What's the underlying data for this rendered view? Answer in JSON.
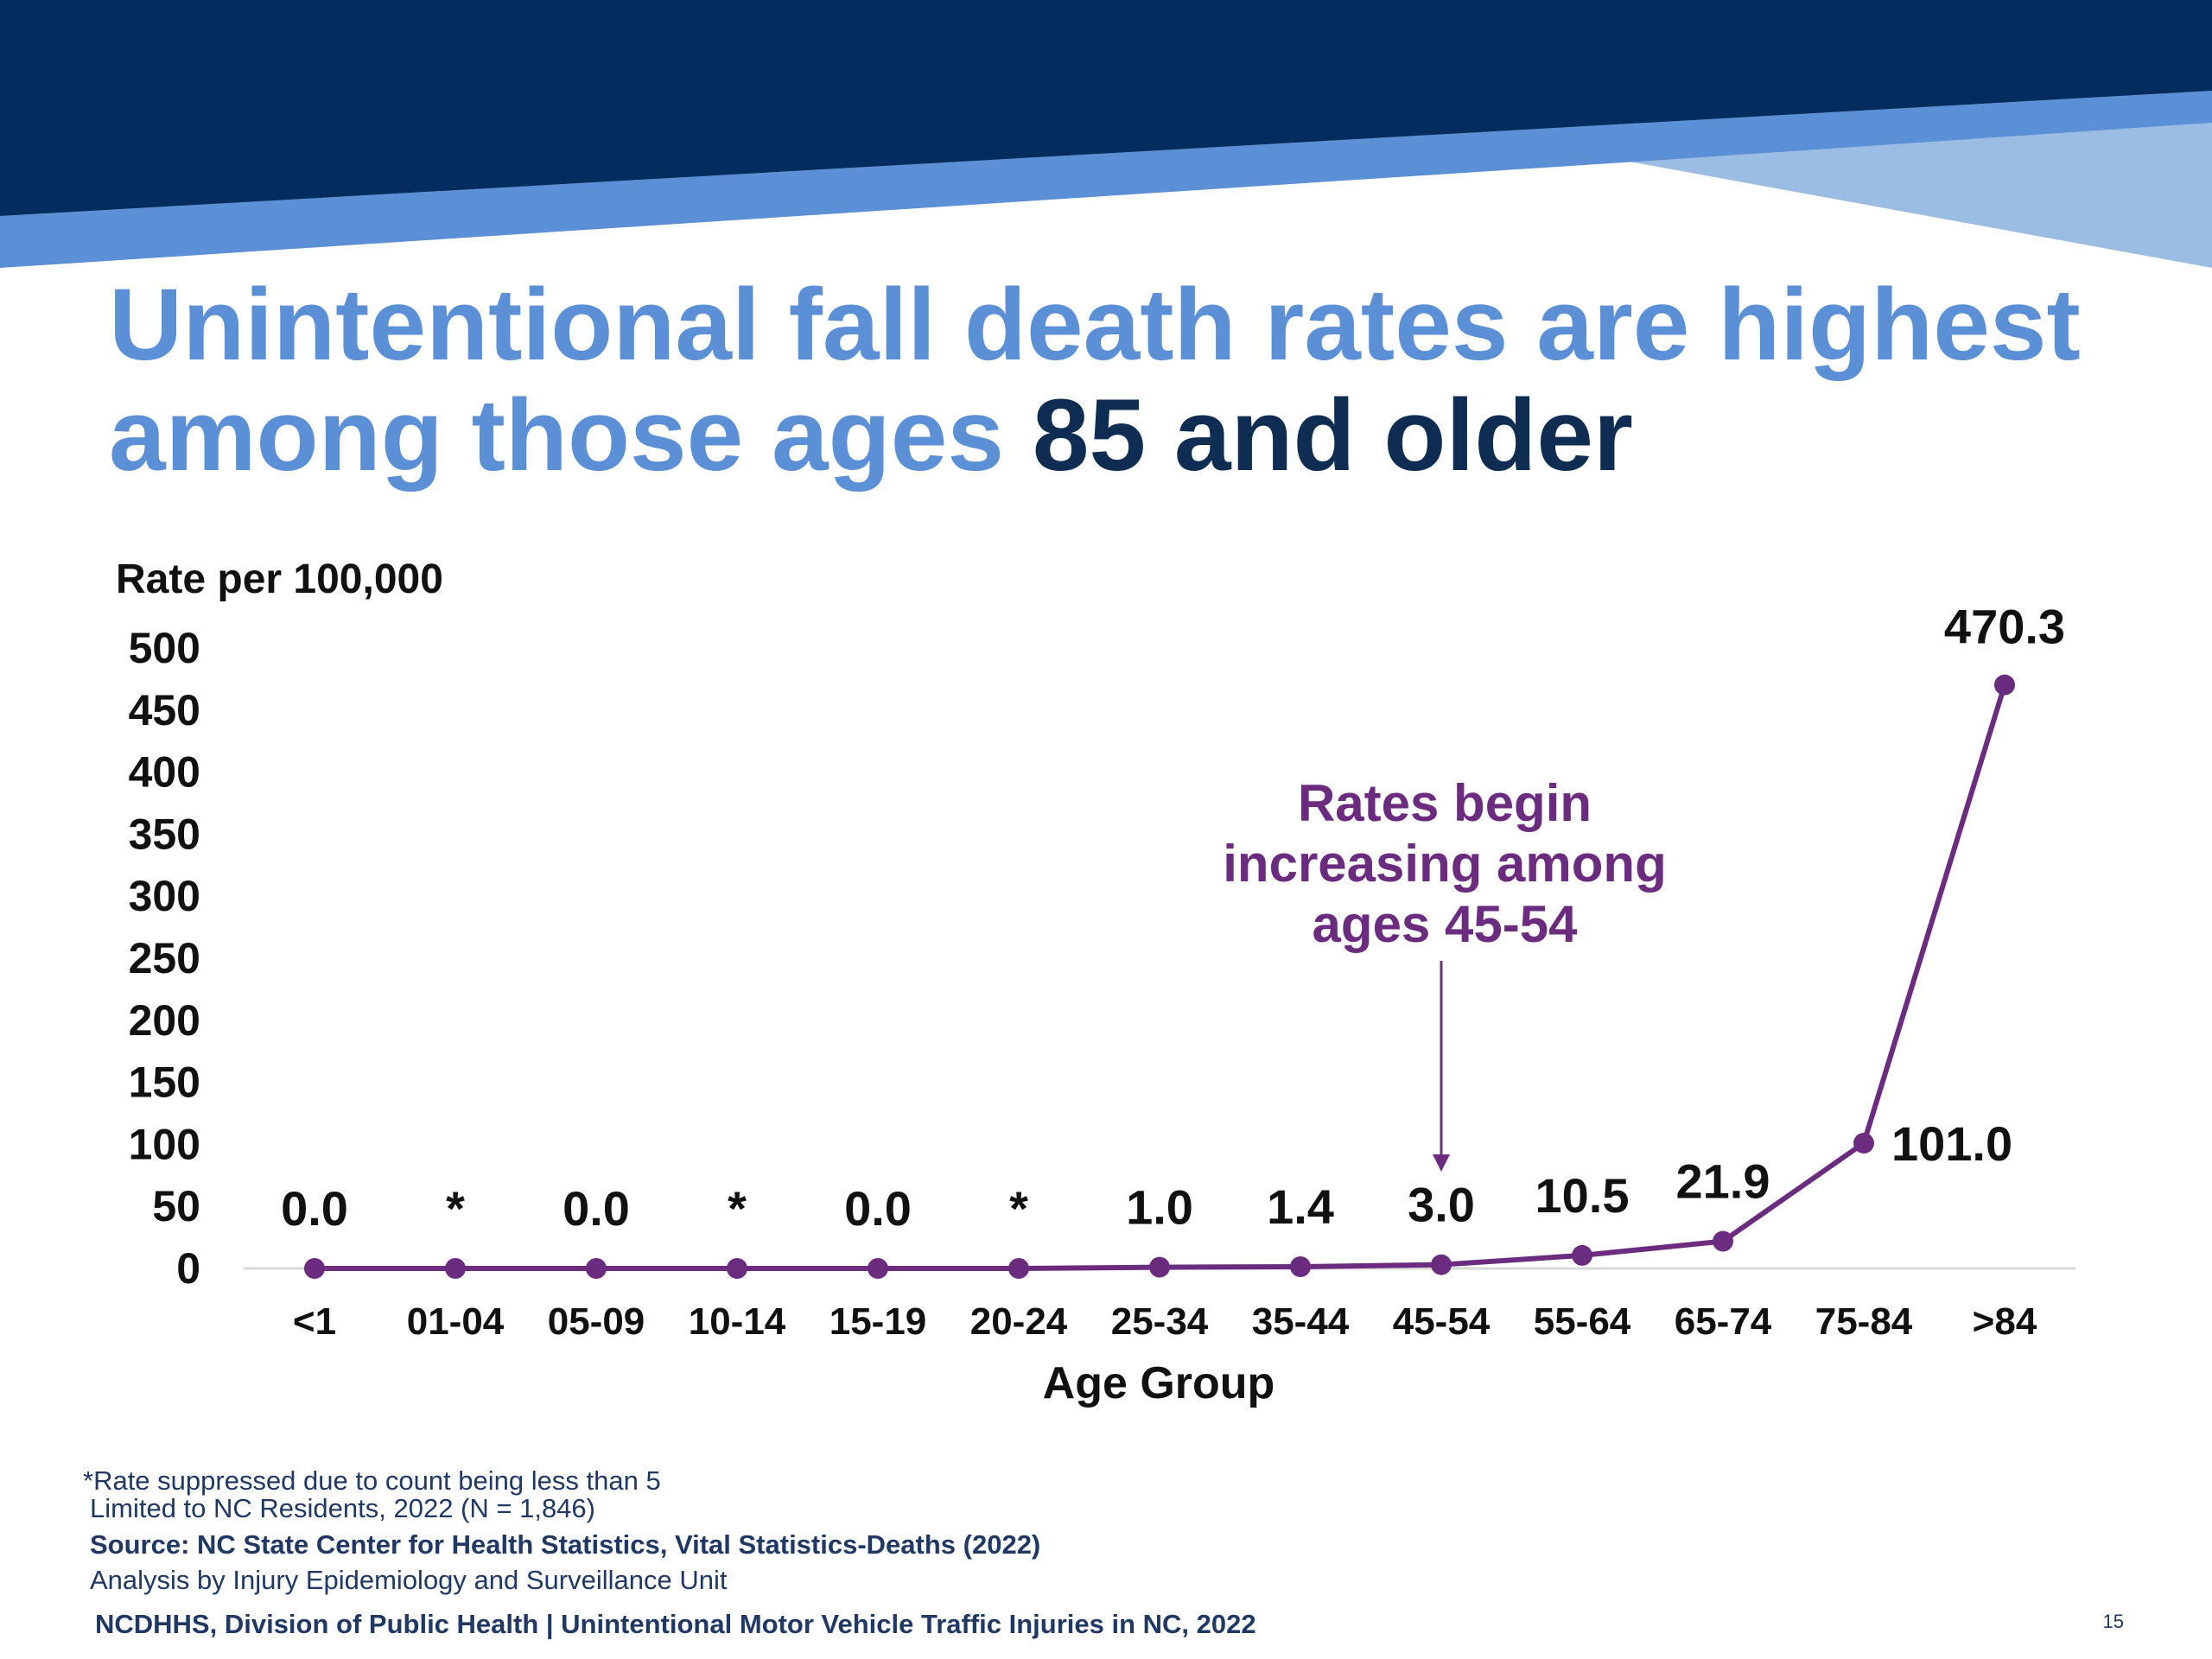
{
  "slide": {
    "title_part1": "Unintentional fall death rates are highest among those ages ",
    "title_part2": "85 and older",
    "colors": {
      "banner_dark": "#022d5e",
      "banner_mid": "#5b8fd6",
      "banner_light": "#9bbde3",
      "title_light": "#5b8fd6",
      "title_dark": "#0f2d52",
      "series": "#6b2c80"
    }
  },
  "chart_data": {
    "type": "line",
    "ylabel": "Rate per 100,000",
    "xlabel": "Age Group",
    "ylim": [
      0,
      500
    ],
    "yticks": [
      0,
      50,
      100,
      150,
      200,
      250,
      300,
      350,
      400,
      450,
      500
    ],
    "categories": [
      "<1",
      "01-04",
      "05-09",
      "10-14",
      "15-19",
      "20-24",
      "25-34",
      "35-44",
      "45-54",
      "55-64",
      "65-74",
      "75-84",
      ">84"
    ],
    "values": [
      0.0,
      0.0,
      0.0,
      0.0,
      0.0,
      0.0,
      1.0,
      1.4,
      3.0,
      10.5,
      21.9,
      101.0,
      470.3
    ],
    "data_labels": [
      "0.0",
      "*",
      "0.0",
      "*",
      "0.0",
      "*",
      "1.0",
      "1.4",
      "3.0",
      "10.5",
      "21.9",
      "101.0",
      "470.3"
    ],
    "grid": false,
    "annotation": {
      "text_lines": [
        "Rates begin",
        "increasing among",
        "ages 45-54"
      ],
      "category": "45-54"
    }
  },
  "footer": {
    "footnote": "*Rate suppressed due to count being less than 5",
    "limited": "Limited to NC Residents, 2022 (N = 1,846)",
    "source": "Source: NC State Center for Health Statistics, Vital Statistics-Deaths (2022)",
    "analysis": "Analysis by Injury Epidemiology and Surveillance Unit",
    "org": "NCDHHS, Division of Public Health | Unintentional Motor Vehicle Traffic Injuries in NC, 2022",
    "page_number": "15"
  }
}
